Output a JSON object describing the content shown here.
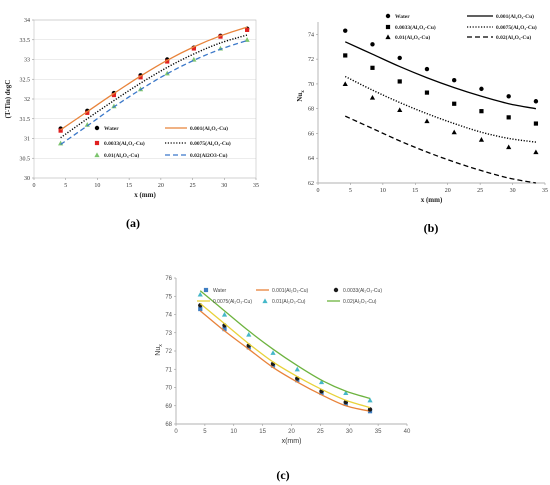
{
  "chart_data": [
    {
      "type": "line",
      "panel_label": "(a)",
      "xlabel": "x (mm)",
      "ylabel": "(T-Tin) degC",
      "xlim": [
        0,
        35
      ],
      "ylim": [
        30,
        34
      ],
      "xticks": [
        "0",
        "5",
        "10",
        "15",
        "20",
        "25",
        "30",
        "35"
      ],
      "yticks": [
        "30",
        "30.5",
        "31",
        "31.5",
        "32",
        "32.5",
        "33",
        "33.5",
        "34"
      ],
      "grid": "horizontal",
      "legend": "bottom",
      "x": [
        4.2,
        8.4,
        12.6,
        16.8,
        21,
        25.2,
        29.4,
        33.6
      ],
      "series": [
        {
          "name": "Water",
          "kind": "points",
          "marker": "circle",
          "color": "#000000",
          "values": [
            31.25,
            31.7,
            32.15,
            32.6,
            33.0,
            33.3,
            33.6,
            33.78
          ]
        },
        {
          "name": "0.0033(Al₂O₃-Cu)",
          "kind": "points",
          "marker": "square",
          "color": "#e02020",
          "values": [
            31.2,
            31.65,
            32.1,
            32.55,
            32.95,
            33.28,
            33.58,
            33.75
          ]
        },
        {
          "name": "0.01(Al₂O₃-Cu)",
          "kind": "points",
          "marker": "triangle",
          "color": "#7cc46e",
          "values": [
            30.88,
            31.35,
            31.82,
            32.25,
            32.65,
            33.0,
            33.28,
            33.5
          ]
        },
        {
          "name": "0.001(Al₂O₃-Cu)",
          "kind": "line",
          "style": "solid",
          "color": "#e8833a",
          "values": [
            31.22,
            31.68,
            32.14,
            32.58,
            32.98,
            33.32,
            33.6,
            33.82
          ]
        },
        {
          "name": "0.0075(Al₂O₃-Cu)",
          "kind": "line",
          "style": "dotted",
          "color": "#000000",
          "values": [
            31.02,
            31.5,
            31.96,
            32.4,
            32.8,
            33.14,
            33.42,
            33.62
          ]
        },
        {
          "name": "0.02(Al2O3-Cu)",
          "kind": "line",
          "style": "dashed",
          "color": "#3b78c9",
          "values": [
            30.85,
            31.32,
            31.8,
            32.24,
            32.64,
            32.98,
            33.26,
            33.48
          ]
        }
      ]
    },
    {
      "type": "line",
      "panel_label": "(b)",
      "xlabel": "x (mm)",
      "ylabel": "Nu",
      "ylabel_sub": "x",
      "xlim": [
        0,
        35
      ],
      "ylim": [
        62,
        75
      ],
      "xticks": [
        "0",
        "5",
        "10",
        "15",
        "20",
        "25",
        "30",
        "35"
      ],
      "yticks": [
        "62",
        "64",
        "66",
        "68",
        "70",
        "72",
        "74"
      ],
      "grid": "none",
      "legend": "top",
      "x": [
        4.2,
        8.4,
        12.6,
        16.8,
        21,
        25.2,
        29.4,
        33.6
      ],
      "series": [
        {
          "name": "Water",
          "kind": "points",
          "marker": "circle",
          "color": "#000000",
          "values": [
            74.3,
            73.2,
            72.1,
            71.2,
            70.3,
            69.6,
            69.0,
            68.6
          ]
        },
        {
          "name": "0.0033(Al₂O₃-Cu)",
          "kind": "points",
          "marker": "square",
          "color": "#000000",
          "values": [
            72.3,
            71.3,
            70.2,
            69.3,
            68.4,
            67.8,
            67.3,
            66.8
          ]
        },
        {
          "name": "0.01(Al₂O₃-Cu)",
          "kind": "points",
          "marker": "triangle",
          "color": "#000000",
          "values": [
            70.0,
            68.9,
            67.9,
            67.0,
            66.1,
            65.5,
            64.9,
            64.5
          ]
        },
        {
          "name": "0.001(Al₂O₃-Cu)",
          "kind": "line",
          "style": "solid",
          "color": "#000000",
          "values": [
            73.4,
            72.4,
            71.4,
            70.5,
            69.7,
            69.0,
            68.4,
            68.0
          ]
        },
        {
          "name": "0.0075(Al₂O₃-Cu)",
          "kind": "line",
          "style": "dotted",
          "color": "#000000",
          "values": [
            70.6,
            69.5,
            68.5,
            67.6,
            66.8,
            66.1,
            65.6,
            65.3
          ]
        },
        {
          "name": "0.02(Al₂O₃-Cu)",
          "kind": "line",
          "style": "dashed",
          "color": "#000000",
          "values": [
            67.4,
            66.4,
            65.4,
            64.5,
            63.7,
            63.0,
            62.4,
            62.0
          ]
        }
      ]
    },
    {
      "type": "line",
      "panel_label": "(c)",
      "xlabel": "x(mm)",
      "ylabel": "Nu",
      "ylabel_sub": "x",
      "xlim": [
        0,
        40
      ],
      "ylim": [
        68,
        76
      ],
      "xticks": [
        "0",
        "5",
        "10",
        "15",
        "20",
        "25",
        "30",
        "35",
        "40"
      ],
      "yticks": [
        "68",
        "69",
        "70",
        "71",
        "72",
        "73",
        "74",
        "75",
        "76"
      ],
      "grid": "none",
      "legend": "top",
      "x": [
        4.2,
        8.4,
        12.6,
        16.8,
        21,
        25.2,
        29.4,
        33.6
      ],
      "series": [
        {
          "name": "Water",
          "kind": "points",
          "marker": "square",
          "color": "#3f7ec2",
          "values": [
            74.3,
            73.2,
            72.2,
            71.2,
            70.4,
            69.7,
            69.1,
            68.7
          ]
        },
        {
          "name": "0.001(Al₂O₃-Cu)",
          "kind": "line",
          "style": "solid",
          "color": "#e8833a",
          "values": [
            74.2,
            73.1,
            72.1,
            71.1,
            70.3,
            69.6,
            69.0,
            68.7
          ]
        },
        {
          "name": "0.0033(Al₂O₃-Cu)",
          "kind": "points",
          "marker": "circle",
          "color": "#1a1a1a",
          "values": [
            74.5,
            73.4,
            72.3,
            71.3,
            70.5,
            69.8,
            69.2,
            68.8
          ]
        },
        {
          "name": "0.0075(Al₂O₃-Cu)",
          "kind": "line",
          "style": "solid",
          "color": "#e8d23a",
          "values": [
            74.6,
            73.5,
            72.4,
            71.4,
            70.6,
            69.9,
            69.3,
            68.9
          ]
        },
        {
          "name": "0.01(Al₂O₃-Cu)",
          "kind": "points",
          "marker": "triangle",
          "color": "#45b8c9",
          "values": [
            75.1,
            74.0,
            72.9,
            71.9,
            71.0,
            70.3,
            69.7,
            69.3
          ]
        },
        {
          "name": "0.02(Al₂O₃-Cu)",
          "kind": "line",
          "style": "solid",
          "color": "#6db33f",
          "values": [
            75.3,
            74.2,
            73.1,
            72.1,
            71.2,
            70.4,
            69.8,
            69.4
          ]
        }
      ]
    }
  ]
}
